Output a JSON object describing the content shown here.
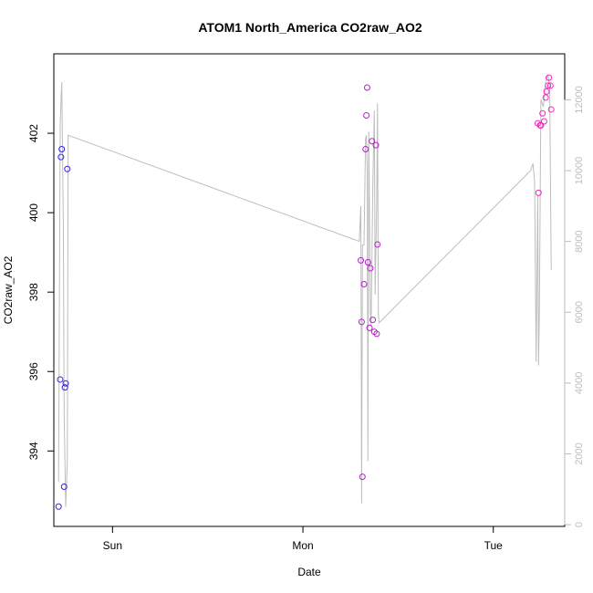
{
  "chart_data": {
    "type": "scatter",
    "title": "ATOM1 North_America CO2raw_AO2",
    "xlabel": "Date",
    "ylabel": "CO2raw_AO2",
    "x_ticks": [
      "Sun",
      "Mon",
      "Tue"
    ],
    "x_unit": "hours from Sat 00:00",
    "x_tick_positions": [
      24,
      48,
      72
    ],
    "xlim": [
      16.6,
      81.0
    ],
    "ylim": [
      392.1,
      404.0
    ],
    "y_ticks": [
      394,
      396,
      398,
      400,
      402
    ],
    "y2lim": [
      -50,
      13300
    ],
    "y2_ticks": [
      0,
      2000,
      4000,
      6000,
      8000,
      10000,
      12000
    ],
    "grid": false,
    "series": [
      {
        "name": "",
        "kind": "points",
        "color_gradient": [
          "#3322dd",
          "#ff22bb"
        ],
        "x": [
          17.2,
          17.4,
          17.5,
          17.6,
          17.9,
          18.0,
          18.1,
          18.3,
          55.3,
          55.4,
          55.5,
          55.7,
          55.9,
          56.0,
          56.1,
          56.2,
          56.4,
          56.5,
          56.7,
          56.8,
          57.0,
          57.2,
          57.3,
          57.4,
          77.6,
          77.7,
          77.9,
          78.0,
          78.2,
          78.4,
          78.6,
          78.7,
          78.9,
          79.0,
          79.2,
          79.3
        ],
        "y": [
          392.6,
          395.8,
          401.4,
          401.6,
          393.1,
          395.6,
          395.7,
          401.1,
          398.8,
          397.25,
          393.35,
          398.2,
          401.6,
          402.45,
          403.15,
          398.75,
          397.1,
          398.6,
          401.8,
          397.3,
          397.0,
          401.7,
          396.95,
          399.2,
          402.25,
          400.5,
          402.2,
          402.2,
          402.5,
          402.3,
          402.9,
          403.05,
          403.2,
          403.4,
          403.2,
          402.6
        ]
      },
      {
        "name": "",
        "kind": "line",
        "axis": "right",
        "color": "#bdbdbd",
        "x": [
          17.2,
          17.4,
          17.5,
          17.6,
          17.8,
          17.9,
          18.1,
          18.3,
          18.4,
          55.1,
          55.3,
          55.4,
          55.5,
          55.7,
          55.9,
          56.0,
          56.1,
          56.2,
          56.3,
          56.5,
          56.6,
          56.8,
          57.0,
          57.1,
          57.3,
          57.4,
          57.5,
          57.6,
          76.7,
          77.0,
          77.2,
          77.4,
          77.6,
          77.7,
          77.8,
          78.0,
          78.3,
          78.6,
          78.9,
          79.1,
          79.3
        ],
        "y": [
          1200,
          11300,
          11900,
          12500,
          8500,
          3200,
          500,
          1800,
          11000,
          8000,
          9000,
          600,
          7900,
          7900,
          10900,
          11000,
          10000,
          1800,
          11100,
          6000,
          5600,
          9500,
          11700,
          6500,
          9000,
          11900,
          6000,
          5700,
          10000,
          10200,
          9700,
          4600,
          9300,
          4500,
          6000,
          12000,
          11800,
          12500,
          12700,
          12400,
          7200
        ]
      }
    ]
  }
}
